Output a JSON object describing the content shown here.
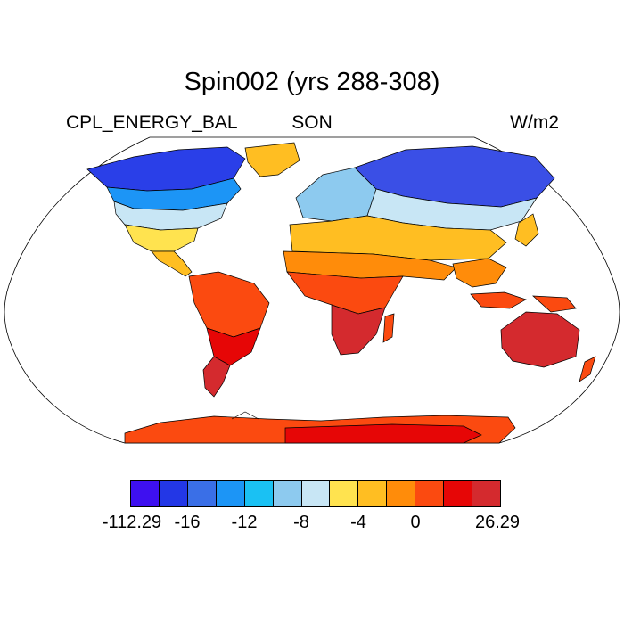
{
  "title": "Spin002 (yrs 288-308)",
  "left_label": "CPL_ENERGY_BAL",
  "center_label": "SON",
  "right_label": "W/m2",
  "colors": {
    "ocean": "#ffffff",
    "outline": "#000000",
    "scale": [
      "#3e10f0",
      "#2337e6",
      "#3a6fe7",
      "#1c95f6",
      "#1ac1f3",
      "#8dcaef",
      "#c8e6f5",
      "#ffe34f",
      "#ffbe22",
      "#ff8c0a",
      "#fb4a10",
      "#e60606",
      "#d42a2e"
    ]
  },
  "legend": {
    "labels": [
      "-112.29",
      "-16",
      "-12",
      "-8",
      "-4",
      "0",
      "26.29"
    ]
  },
  "regions": [
    {
      "name": "north-america-arctic",
      "color": "#2a3fe8"
    },
    {
      "name": "north-america-boreal",
      "color": "#1c95f6"
    },
    {
      "name": "north-america-temperate",
      "color": "#c8e6f5"
    },
    {
      "name": "north-america-south",
      "color": "#ffe34f"
    },
    {
      "name": "central-america",
      "color": "#ffbe22"
    },
    {
      "name": "greenland",
      "color": "#ffbe22"
    },
    {
      "name": "south-america-north",
      "color": "#fb4a10"
    },
    {
      "name": "south-america-south",
      "color": "#e60606"
    },
    {
      "name": "patagonia",
      "color": "#d42a2e"
    },
    {
      "name": "europe",
      "color": "#8dcaef"
    },
    {
      "name": "siberia",
      "color": "#3a4fe6"
    },
    {
      "name": "central-asia",
      "color": "#c8e6f5"
    },
    {
      "name": "north-africa-mideast",
      "color": "#ffbe22"
    },
    {
      "name": "sahel-india",
      "color": "#ff8c0a"
    },
    {
      "name": "central-africa",
      "color": "#fb4a10"
    },
    {
      "name": "southern-africa",
      "color": "#d42a2e"
    },
    {
      "name": "madagascar",
      "color": "#fb4a10"
    },
    {
      "name": "southeast-asia",
      "color": "#ff8c0a"
    },
    {
      "name": "maritime-continent",
      "color": "#fb4a10"
    },
    {
      "name": "new-guinea",
      "color": "#fb4a10"
    },
    {
      "name": "australia",
      "color": "#d42a2e"
    },
    {
      "name": "new-zealand",
      "color": "#fb4a10"
    },
    {
      "name": "japan",
      "color": "#ffbe22"
    },
    {
      "name": "antarctica",
      "color": "#fb4a10"
    },
    {
      "name": "antarctica-interior",
      "color": "#e60606"
    }
  ]
}
